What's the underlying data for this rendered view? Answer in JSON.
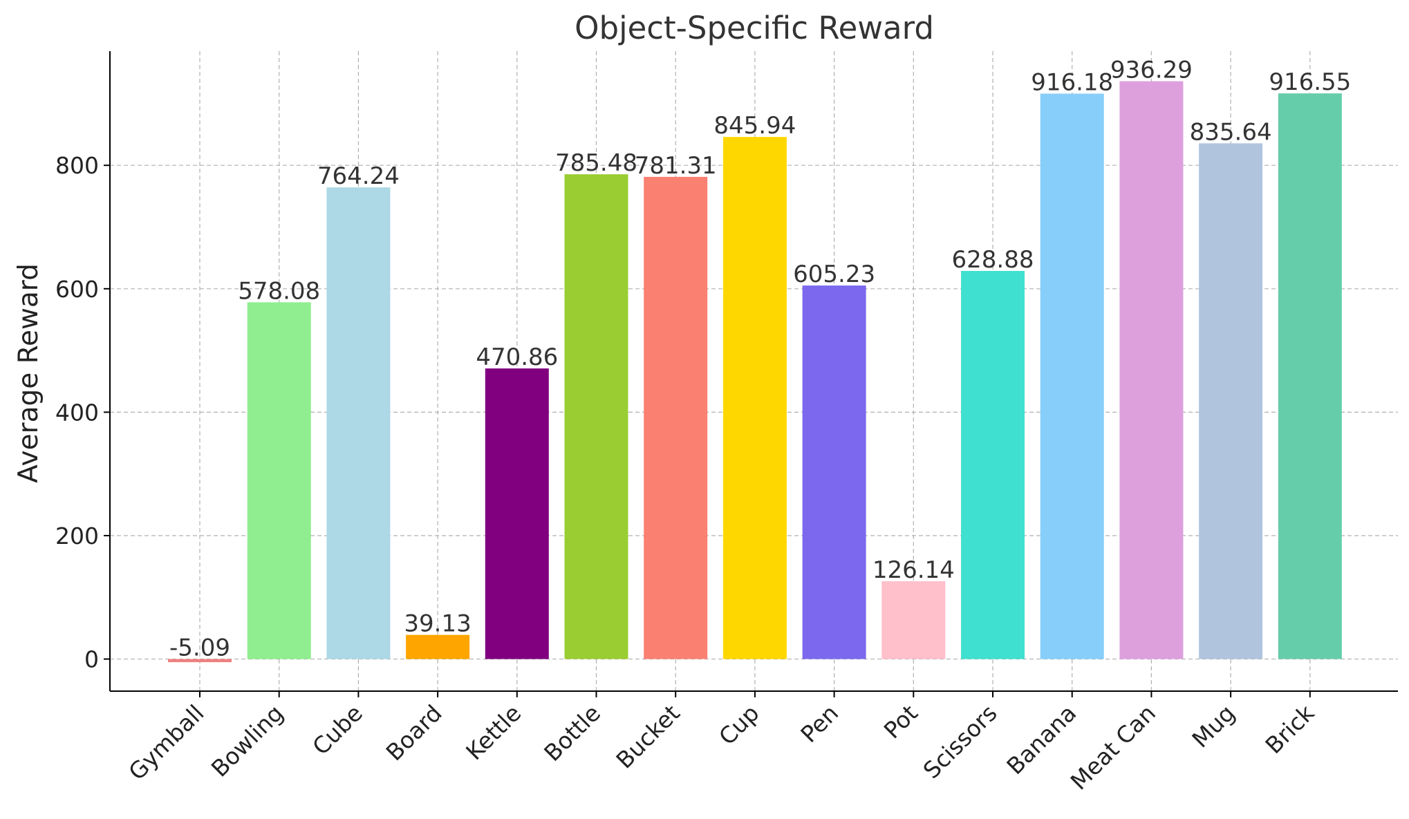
{
  "chart_data": {
    "type": "bar",
    "title": "Object-Specific Reward",
    "xlabel": "",
    "ylabel": "Average Reward",
    "categories": [
      "Gymball",
      "Bowling",
      "Cube",
      "Board",
      "Kettle",
      "Bottle",
      "Bucket",
      "Cup",
      "Pen",
      "Pot",
      "Scissors",
      "Banana",
      "Meat Can",
      "Mug",
      "Brick"
    ],
    "values": [
      -5.09,
      578.08,
      764.24,
      39.13,
      470.86,
      785.48,
      781.31,
      845.94,
      605.23,
      126.14,
      628.88,
      916.18,
      936.29,
      835.64,
      916.55
    ],
    "value_labels": [
      "-5.09",
      "578.08",
      "764.24",
      "39.13",
      "470.86",
      "785.48",
      "781.31",
      "845.94",
      "605.23",
      "126.14",
      "628.88",
      "916.18",
      "936.29",
      "835.64",
      "916.55"
    ],
    "colors": [
      "#f08080",
      "#90ee90",
      "#add8e6",
      "#ffa500",
      "#800080",
      "#9acd32",
      "#fa8072",
      "#ffd700",
      "#7b68ee",
      "#ffc0cb",
      "#40e0d0",
      "#87cefa",
      "#dda0dd",
      "#b0c4de",
      "#66cdaa"
    ],
    "yticks": [
      0,
      200,
      400,
      600,
      800
    ],
    "ylim": [
      -52,
      985
    ],
    "grid": true,
    "legend": "none"
  }
}
